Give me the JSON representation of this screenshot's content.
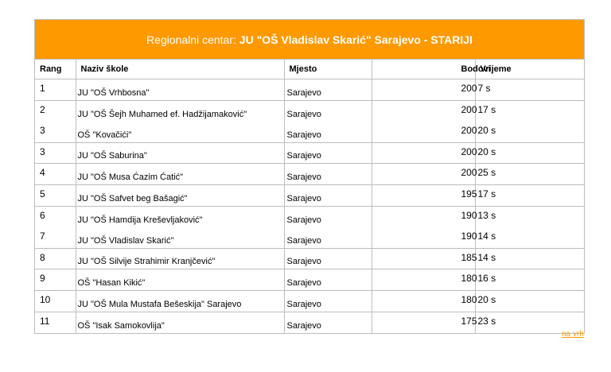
{
  "banner": {
    "prefix": "Regionalni centar: ",
    "center": "JU \"OŠ Vladislav Skarić\" Sarajevo - STARIJI"
  },
  "columns": {
    "rang": "Rang",
    "naziv": "Naziv škole",
    "mjesto": "Mjesto",
    "bodovi": "Bodovi",
    "vrijeme": "Vrijeme"
  },
  "rows": [
    {
      "rang": "1",
      "naziv": "JU \"OŠ Vrhbosna\"",
      "mjesto": "Sarajevo",
      "bodovi": "200",
      "vrijeme": "7 s"
    },
    {
      "rang": "2",
      "naziv": "JU \"OŠ Šejh Muhamed ef. Hadžijamaković\"",
      "mjesto": "Sarajevo",
      "bodovi": "200",
      "vrijeme": "17 s"
    },
    {
      "rang": "3",
      "naziv": "OŠ \"Kovačići\"",
      "mjesto": "Sarajevo",
      "bodovi": "200",
      "vrijeme": "20 s"
    },
    {
      "rang": "3",
      "naziv": "JU \"OŠ Saburina\"",
      "mjesto": "Sarajevo",
      "bodovi": "200",
      "vrijeme": "20 s"
    },
    {
      "rang": "4",
      "naziv": "JU \"OŠ Musa Ćazim Ćatić\"",
      "mjesto": "Sarajevo",
      "bodovi": "200",
      "vrijeme": "25 s"
    },
    {
      "rang": "5",
      "naziv": "JU \"OŠ Safvet beg Bašagić\"",
      "mjesto": "Sarajevo",
      "bodovi": "195",
      "vrijeme": "17 s"
    },
    {
      "rang": "6",
      "naziv": "JU \"OŠ Hamdija Kreševljaković\"",
      "mjesto": "Sarajevo",
      "bodovi": "190",
      "vrijeme": "13 s"
    },
    {
      "rang": "7",
      "naziv": "JU \"OŠ Vladislav Skarić\"",
      "mjesto": "Sarajevo",
      "bodovi": "190",
      "vrijeme": "14 s"
    },
    {
      "rang": "8",
      "naziv": "JU \"OŠ Silvije Strahimir Kranjčević\"",
      "mjesto": "Sarajevo",
      "bodovi": "185",
      "vrijeme": "14 s"
    },
    {
      "rang": "9",
      "naziv": "OŠ \"Hasan Kikić\"",
      "mjesto": "Sarajevo",
      "bodovi": "180",
      "vrijeme": "16 s"
    },
    {
      "rang": "10",
      "naziv": "JU \"OŠ Mula Mustafa Bešeskija\" Sarajevo",
      "mjesto": "Sarajevo",
      "bodovi": "180",
      "vrijeme": "20 s"
    },
    {
      "rang": "11",
      "naziv": "OŠ \"Isak Samokovlija\"",
      "mjesto": "Sarajevo",
      "bodovi": "175",
      "vrijeme": "23 s"
    }
  ],
  "footer": {
    "top_link": "na vrh"
  },
  "colors": {
    "accent": "#ff9900",
    "border": "#bdbdbd"
  }
}
